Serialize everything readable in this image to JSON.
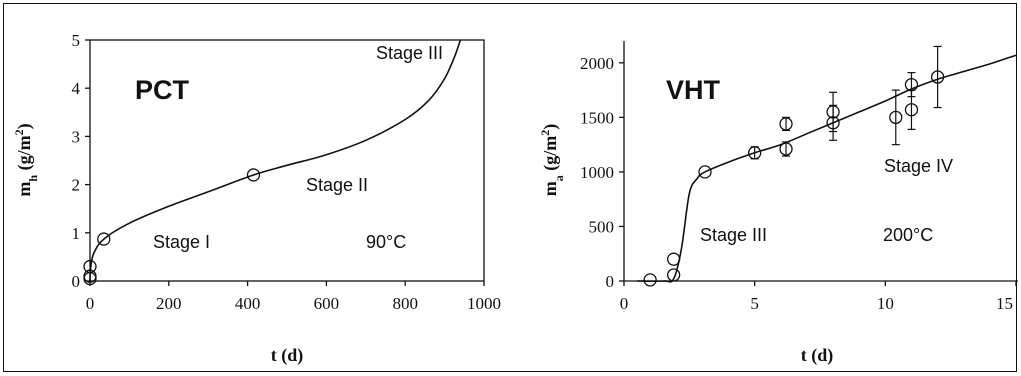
{
  "chart_data": [
    {
      "type": "scatter",
      "title": "PCT",
      "xlabel": "t (d)",
      "ylabel": "m_h (g/m^2)",
      "ylabel_main": "m",
      "ylabel_sub": "h",
      "ylabel_unit": " (g/m",
      "ylabel_sup": "2",
      "ylabel_close": ")",
      "xlim": [
        0,
        1000
      ],
      "ylim": [
        0,
        5
      ],
      "xticks": [
        0,
        200,
        400,
        600,
        800,
        1000
      ],
      "xtick_labels": [
        "0",
        "200",
        "400",
        "600",
        "800",
        "1000"
      ],
      "yticks": [
        0,
        1,
        2,
        3,
        4,
        5
      ],
      "ytick_labels": [
        "0",
        "1",
        "2",
        "3",
        "4",
        "5"
      ],
      "grid": false,
      "annotations": [
        "Stage III",
        "Stage II",
        "Stage I",
        "90°C"
      ],
      "points": [
        {
          "x": 0,
          "y": 0.05
        },
        {
          "x": 0,
          "y": 0.1
        },
        {
          "x": 0,
          "y": 0.3
        },
        {
          "x": 35,
          "y": 0.87
        },
        {
          "x": 415,
          "y": 2.2
        }
      ],
      "fit_curve": [
        [
          0,
          0
        ],
        [
          2,
          0.3
        ],
        [
          10,
          0.58
        ],
        [
          35,
          0.87
        ],
        [
          100,
          1.2
        ],
        [
          200,
          1.55
        ],
        [
          300,
          1.85
        ],
        [
          415,
          2.2
        ],
        [
          500,
          2.4
        ],
        [
          600,
          2.62
        ],
        [
          700,
          2.92
        ],
        [
          800,
          3.35
        ],
        [
          860,
          3.75
        ],
        [
          900,
          4.2
        ],
        [
          925,
          4.65
        ],
        [
          940,
          5.0
        ]
      ]
    },
    {
      "type": "scatter",
      "title": "VHT",
      "xlabel": "t (d)",
      "ylabel": "m_a (g/m^2)",
      "ylabel_main": "m",
      "ylabel_sub": "a",
      "ylabel_unit": " (g/m",
      "ylabel_sup": "2",
      "ylabel_close": ")",
      "xlim": [
        0,
        15
      ],
      "ylim": [
        0,
        2200
      ],
      "xticks": [
        0,
        5,
        10,
        15
      ],
      "xtick_labels": [
        "0",
        "5",
        "10",
        "15"
      ],
      "yticks": [
        0,
        500,
        1000,
        1500,
        2000
      ],
      "ytick_labels": [
        "0",
        "500",
        "1000",
        "1500",
        "2000"
      ],
      "grid": false,
      "annotations": [
        "Stage III",
        "200°C",
        "Stage IV"
      ],
      "points": [
        {
          "x": 1.0,
          "y": 10
        },
        {
          "x": 1.9,
          "y": 55
        },
        {
          "x": 1.9,
          "y": 200
        },
        {
          "x": 3.1,
          "y": 1000
        },
        {
          "x": 5.0,
          "y": 1175,
          "err": 55
        },
        {
          "x": 6.2,
          "y": 1210,
          "err": 65
        },
        {
          "x": 6.2,
          "y": 1440,
          "err": 60
        },
        {
          "x": 8.0,
          "y": 1450,
          "err": 160
        },
        {
          "x": 8.0,
          "y": 1550,
          "err": 180
        },
        {
          "x": 10.4,
          "y": 1500,
          "err": 250
        },
        {
          "x": 11.0,
          "y": 1570,
          "err": 180
        },
        {
          "x": 11.0,
          "y": 1800,
          "err": 110
        },
        {
          "x": 12.0,
          "y": 1870,
          "err": 280
        }
      ],
      "fit_curve": [
        [
          0.5,
          0
        ],
        [
          1.5,
          0
        ],
        [
          1.9,
          20
        ],
        [
          2.2,
          300
        ],
        [
          2.5,
          800
        ],
        [
          2.8,
          940
        ],
        [
          3.1,
          1000
        ],
        [
          4,
          1090
        ],
        [
          5,
          1175
        ],
        [
          6,
          1250
        ],
        [
          7,
          1350
        ],
        [
          8,
          1450
        ],
        [
          9,
          1550
        ],
        [
          10,
          1650
        ],
        [
          11,
          1760
        ],
        [
          12,
          1850
        ],
        [
          13,
          1920
        ],
        [
          14,
          1990
        ],
        [
          15,
          2070
        ]
      ]
    }
  ]
}
